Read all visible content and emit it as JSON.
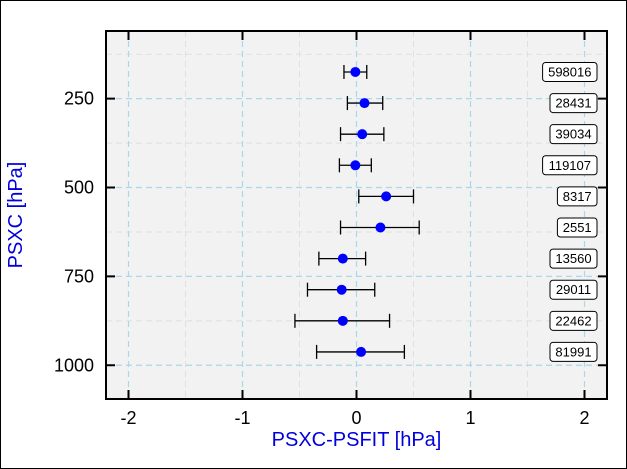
{
  "chart_data": {
    "type": "scatter",
    "title": "",
    "xlabel": "PSXC-PSFIT [hPa]",
    "ylabel": "PSXC [hPa]",
    "xlim": [
      -2.2,
      2.2
    ],
    "ylim": [
      1095,
      105
    ],
    "xticks": [
      -2,
      -1,
      0,
      1,
      2
    ],
    "yticks": [
      250,
      500,
      750,
      1000
    ],
    "grid": true,
    "legend": "none",
    "marker_color": "#0000ff",
    "errorbar_color": "#000000",
    "points": [
      {
        "y": 175,
        "x": -0.01,
        "err_low": -0.11,
        "err_high": 0.09,
        "count": "598016"
      },
      {
        "y": 262.5,
        "x": 0.07,
        "err_low": -0.08,
        "err_high": 0.23,
        "count": "28431"
      },
      {
        "y": 350,
        "x": 0.05,
        "err_low": -0.14,
        "err_high": 0.24,
        "count": "39034"
      },
      {
        "y": 437.5,
        "x": -0.01,
        "err_low": -0.15,
        "err_high": 0.13,
        "count": "119107"
      },
      {
        "y": 525,
        "x": 0.26,
        "err_low": 0.02,
        "err_high": 0.5,
        "count": "8317"
      },
      {
        "y": 612.5,
        "x": 0.21,
        "err_low": -0.14,
        "err_high": 0.55,
        "count": "2551"
      },
      {
        "y": 700,
        "x": -0.12,
        "err_low": -0.33,
        "err_high": 0.08,
        "count": "13560"
      },
      {
        "y": 787.5,
        "x": -0.13,
        "err_low": -0.43,
        "err_high": 0.16,
        "count": "29011"
      },
      {
        "y": 875,
        "x": -0.12,
        "err_low": -0.54,
        "err_high": 0.29,
        "count": "22462"
      },
      {
        "y": 962.5,
        "x": 0.04,
        "err_low": -0.35,
        "err_high": 0.42,
        "count": "81991"
      }
    ]
  }
}
